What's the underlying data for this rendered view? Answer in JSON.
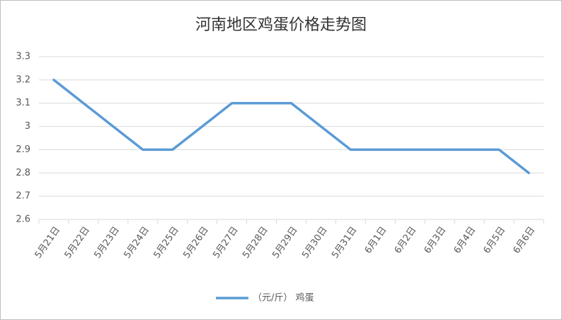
{
  "chart_data": {
    "type": "line",
    "title": "河南地区鸡蛋价格走势图",
    "categories": [
      "5月21日",
      "5月22日",
      "5月23日",
      "5月24日",
      "5月25日",
      "5月26日",
      "5月27日",
      "5月28日",
      "5月29日",
      "5月30日",
      "5月31日",
      "6月1日",
      "6月2日",
      "6月3日",
      "6月4日",
      "6月5日",
      "6月6日"
    ],
    "series": [
      {
        "name": "（元/斤） 鸡蛋",
        "color": "#5b9bd5",
        "values": [
          3.2,
          3.1,
          3.0,
          2.9,
          2.9,
          3.0,
          3.1,
          3.1,
          3.1,
          3.0,
          2.9,
          2.9,
          2.9,
          2.9,
          2.9,
          2.9,
          2.8
        ]
      }
    ],
    "ylim": [
      2.6,
      3.3
    ],
    "yticks": [
      2.6,
      2.7,
      2.8,
      2.9,
      3,
      3.1,
      3.2,
      3.3
    ],
    "grid": true,
    "legend": "bottom"
  }
}
